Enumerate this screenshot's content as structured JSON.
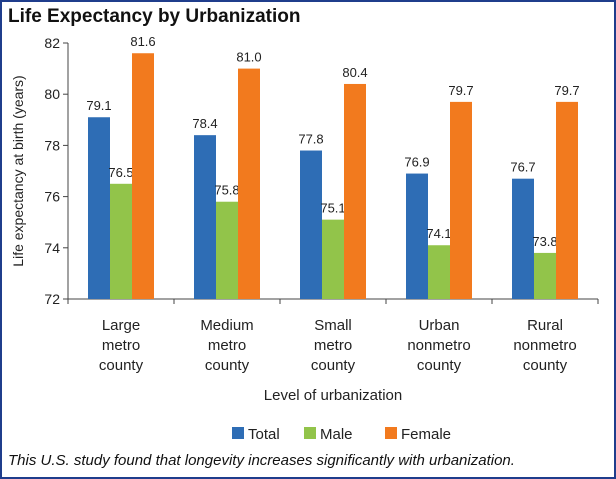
{
  "page": {
    "title": "Life Expectancy by Urbanization",
    "caption": "This U.S. study found that longevity increases significantly with urbanization."
  },
  "chart_data": {
    "type": "bar",
    "title": "",
    "xlabel": "Level of urbanization",
    "ylabel": "Life expectancy at birth (years)",
    "ylim": [
      72,
      82
    ],
    "yticks": [
      72,
      74,
      76,
      78,
      80,
      82
    ],
    "categories": [
      [
        "Large",
        "metro",
        "county"
      ],
      [
        "Medium",
        "metro",
        "county"
      ],
      [
        "Small",
        "metro",
        "county"
      ],
      [
        "Urban",
        "nonmetro",
        "county"
      ],
      [
        "Rural",
        "nonmetro",
        "county"
      ]
    ],
    "series": [
      {
        "name": "Total",
        "color": "#2e6db5",
        "values": [
          79.1,
          78.4,
          77.8,
          76.9,
          76.7
        ],
        "labels": [
          "79.1",
          "78.4",
          "77.8",
          "76.9",
          "76.7"
        ]
      },
      {
        "name": "Male",
        "color": "#92c44a",
        "values": [
          76.5,
          75.8,
          75.1,
          74.1,
          73.8
        ],
        "labels": [
          "76.5",
          "75.8",
          "75.1",
          "74.1",
          "73.8"
        ]
      },
      {
        "name": "Female",
        "color": "#f27a1e",
        "values": [
          81.6,
          81.0,
          80.4,
          79.7,
          79.7
        ],
        "labels": [
          "81.6",
          "81.0",
          "80.4",
          "79.7",
          "79.7"
        ]
      }
    ],
    "legend_position": "bottom",
    "grid": false
  }
}
